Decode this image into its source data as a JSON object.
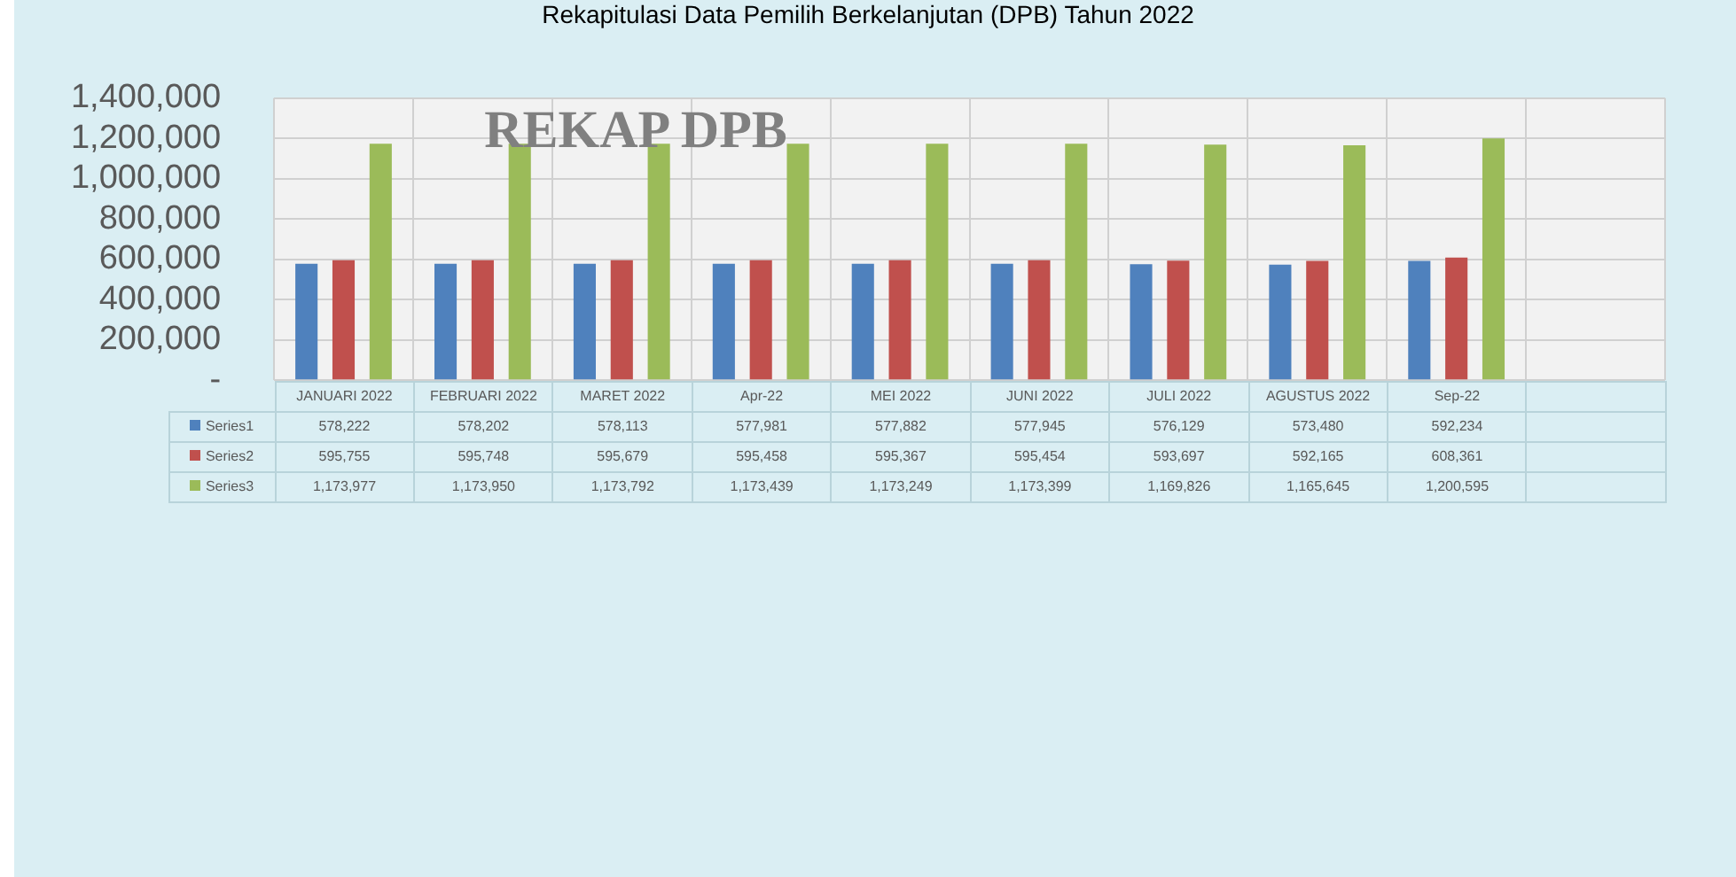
{
  "chart_data": {
    "type": "bar",
    "title": "Rekapitulasi Data Pemilih Berkelanjutan (DPB) Tahun 2022",
    "annotations": [
      "REKAP DPB"
    ],
    "categories": [
      "JANUARI 2022",
      "FEBRUARI 2022",
      "MARET 2022",
      "Apr-22",
      "MEI 2022",
      "JUNI 2022",
      "JULI 2022",
      "AGUSTUS 2022",
      "Sep-22",
      null
    ],
    "series": [
      {
        "name": "Series1",
        "color": "#4f81bd",
        "values": [
          578222,
          578202,
          578113,
          577981,
          577882,
          577945,
          576129,
          573480,
          592234,
          null
        ],
        "value_labels": [
          "578,222",
          "578,202",
          "578,113",
          "577,981",
          "577,882",
          "577,945",
          "576,129",
          "573,480",
          "592,234",
          null
        ]
      },
      {
        "name": "Series2",
        "color": "#c0504d",
        "values": [
          595755,
          595748,
          595679,
          595458,
          595367,
          595454,
          593697,
          592165,
          608361,
          null
        ],
        "value_labels": [
          "595,755",
          "595,748",
          "595,679",
          "595,458",
          "595,367",
          "595,454",
          "593,697",
          "592,165",
          "608,361",
          null
        ]
      },
      {
        "name": "Series3",
        "color": "#9bbb59",
        "values": [
          1173977,
          1173950,
          1173792,
          1173439,
          1173249,
          1173399,
          1169826,
          1165645,
          1200595,
          null
        ],
        "value_labels": [
          "1,173,977",
          "1,173,950",
          "1,173,792",
          "1,173,439",
          "1,173,249",
          "1,173,399",
          "1,169,826",
          "1,165,645",
          "1,200,595",
          null
        ]
      }
    ],
    "ylim": [
      0,
      1400000
    ],
    "yticks": [
      {
        "value": 0,
        "label": "-"
      },
      {
        "value": 200000,
        "label": "200,000"
      },
      {
        "value": 400000,
        "label": "400,000"
      },
      {
        "value": 600000,
        "label": "600,000"
      },
      {
        "value": 800000,
        "label": "800,000"
      },
      {
        "value": 1000000,
        "label": "1,000,000"
      },
      {
        "value": 1200000,
        "label": "1,200,000"
      },
      {
        "value": 1400000,
        "label": "1,400,000"
      }
    ],
    "grid": true,
    "legend": "bottom"
  }
}
